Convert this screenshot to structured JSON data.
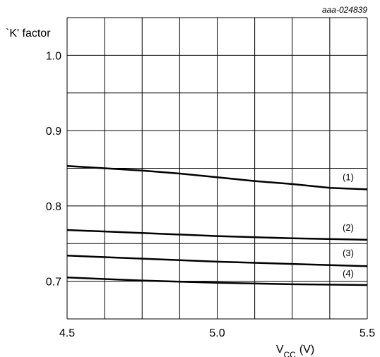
{
  "chart_data": {
    "type": "line",
    "figure_id": "aaa-024839",
    "title": "",
    "xlabel": "V",
    "xlabel_sub": "CC",
    "xlabel_unit": "(V)",
    "ylabel": "`K' factor",
    "xlim": [
      4.5,
      5.5
    ],
    "ylim": [
      0.65,
      1.05
    ],
    "grid": true,
    "x_ticks": [
      {
        "value": 4.5,
        "label": "4.5"
      },
      {
        "value": 5.0,
        "label": "5.0"
      },
      {
        "value": 5.5,
        "label": "5.5"
      }
    ],
    "y_ticks": [
      {
        "value": 0.7,
        "label": "0.7"
      },
      {
        "value": 0.8,
        "label": "0.8"
      },
      {
        "value": 0.9,
        "label": "0.9"
      },
      {
        "value": 1.0,
        "label": "1.0"
      }
    ],
    "series": [
      {
        "label": "(1)",
        "x": [
          4.5,
          4.625,
          4.75,
          4.875,
          5.0,
          5.125,
          5.25,
          5.375,
          5.5
        ],
        "y": [
          0.853,
          0.85,
          0.847,
          0.843,
          0.838,
          0.833,
          0.829,
          0.824,
          0.822
        ]
      },
      {
        "label": "(2)",
        "x": [
          4.5,
          4.75,
          5.0,
          5.25,
          5.5
        ],
        "y": [
          0.768,
          0.764,
          0.76,
          0.757,
          0.755
        ]
      },
      {
        "label": "(3)",
        "x": [
          4.5,
          4.75,
          5.0,
          5.25,
          5.5
        ],
        "y": [
          0.734,
          0.73,
          0.726,
          0.723,
          0.72
        ]
      },
      {
        "label": "(4)",
        "x": [
          4.5,
          4.75,
          5.0,
          5.25,
          5.5
        ],
        "y": [
          0.705,
          0.701,
          0.698,
          0.696,
          0.695
        ]
      }
    ]
  }
}
